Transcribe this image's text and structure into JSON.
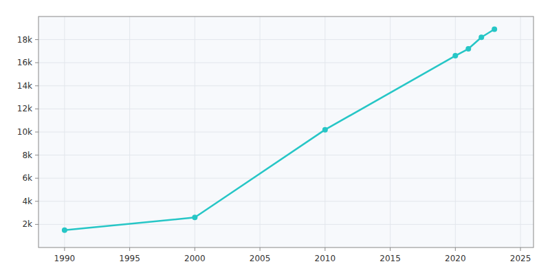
{
  "chart_data": {
    "type": "line",
    "x": [
      1990,
      2000,
      2010,
      2020,
      2021,
      2022,
      2023
    ],
    "values": [
      1500,
      2600,
      10200,
      16600,
      17200,
      18200,
      18900
    ],
    "color": "#26C6C6",
    "marker": "circle",
    "xlim": [
      1988,
      2026
    ],
    "ylim": [
      0,
      20000
    ],
    "xticks": [
      1990,
      1995,
      2000,
      2005,
      2010,
      2015,
      2020,
      2025
    ],
    "yticks": [
      {
        "value": 2000,
        "label": "2k"
      },
      {
        "value": 4000,
        "label": "4k"
      },
      {
        "value": 6000,
        "label": "6k"
      },
      {
        "value": 8000,
        "label": "8k"
      },
      {
        "value": 10000,
        "label": "10k"
      },
      {
        "value": 12000,
        "label": "12k"
      },
      {
        "value": 14000,
        "label": "14k"
      },
      {
        "value": 16000,
        "label": "16k"
      },
      {
        "value": 18000,
        "label": "18k"
      }
    ],
    "grid": true
  }
}
